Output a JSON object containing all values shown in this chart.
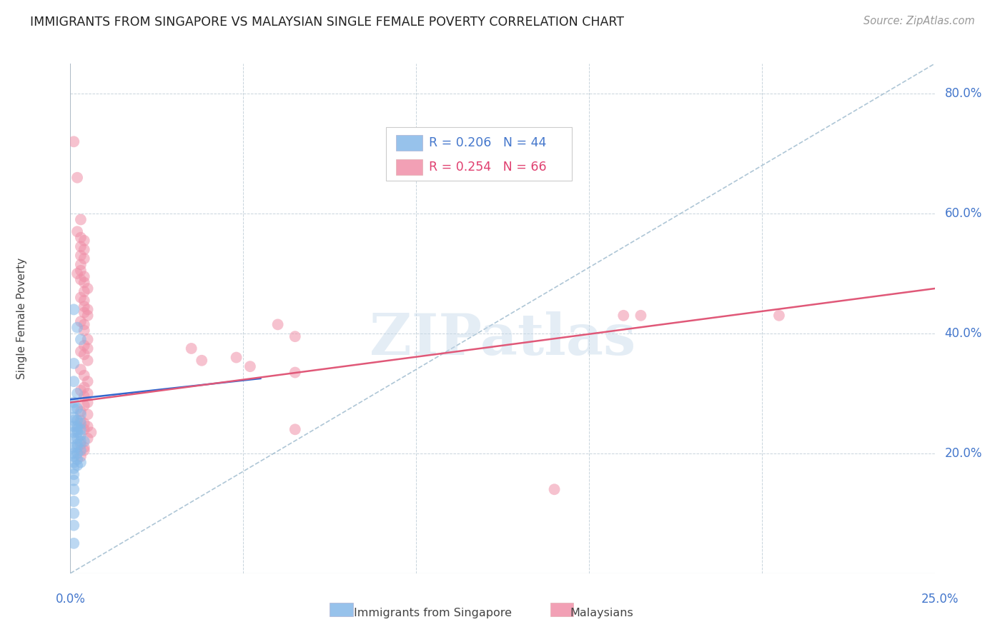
{
  "title": "IMMIGRANTS FROM SINGAPORE VS MALAYSIAN SINGLE FEMALE POVERTY CORRELATION CHART",
  "source": "Source: ZipAtlas.com",
  "ylabel": "Single Female Poverty",
  "legend_entries": [
    {
      "label": "R = 0.206   N = 44",
      "color": "#aac4e8"
    },
    {
      "label": "R = 0.254   N = 66",
      "color": "#f4a0b4"
    }
  ],
  "legend_labels_bottom": [
    "Immigrants from Singapore",
    "Malaysians"
  ],
  "xlim": [
    0.0,
    0.25
  ],
  "ylim": [
    0.0,
    0.85
  ],
  "blue_scatter": [
    [
      0.001,
      0.44
    ],
    [
      0.002,
      0.41
    ],
    [
      0.003,
      0.39
    ],
    [
      0.001,
      0.35
    ],
    [
      0.001,
      0.32
    ],
    [
      0.002,
      0.3
    ],
    [
      0.001,
      0.285
    ],
    [
      0.001,
      0.275
    ],
    [
      0.002,
      0.275
    ],
    [
      0.003,
      0.265
    ],
    [
      0.001,
      0.26
    ],
    [
      0.002,
      0.255
    ],
    [
      0.001,
      0.255
    ],
    [
      0.003,
      0.25
    ],
    [
      0.002,
      0.245
    ],
    [
      0.001,
      0.245
    ],
    [
      0.002,
      0.24
    ],
    [
      0.003,
      0.24
    ],
    [
      0.001,
      0.235
    ],
    [
      0.002,
      0.235
    ],
    [
      0.003,
      0.23
    ],
    [
      0.001,
      0.225
    ],
    [
      0.002,
      0.225
    ],
    [
      0.003,
      0.22
    ],
    [
      0.004,
      0.22
    ],
    [
      0.002,
      0.215
    ],
    [
      0.001,
      0.21
    ],
    [
      0.002,
      0.21
    ],
    [
      0.003,
      0.205
    ],
    [
      0.001,
      0.2
    ],
    [
      0.002,
      0.2
    ],
    [
      0.001,
      0.195
    ],
    [
      0.002,
      0.19
    ],
    [
      0.001,
      0.185
    ],
    [
      0.003,
      0.185
    ],
    [
      0.002,
      0.18
    ],
    [
      0.001,
      0.175
    ],
    [
      0.001,
      0.165
    ],
    [
      0.001,
      0.155
    ],
    [
      0.001,
      0.14
    ],
    [
      0.001,
      0.12
    ],
    [
      0.001,
      0.1
    ],
    [
      0.001,
      0.08
    ],
    [
      0.001,
      0.05
    ]
  ],
  "pink_scatter": [
    [
      0.001,
      0.72
    ],
    [
      0.002,
      0.66
    ],
    [
      0.003,
      0.59
    ],
    [
      0.002,
      0.57
    ],
    [
      0.003,
      0.56
    ],
    [
      0.004,
      0.555
    ],
    [
      0.003,
      0.545
    ],
    [
      0.004,
      0.54
    ],
    [
      0.003,
      0.53
    ],
    [
      0.004,
      0.525
    ],
    [
      0.003,
      0.515
    ],
    [
      0.003,
      0.505
    ],
    [
      0.002,
      0.5
    ],
    [
      0.004,
      0.495
    ],
    [
      0.003,
      0.49
    ],
    [
      0.004,
      0.485
    ],
    [
      0.005,
      0.475
    ],
    [
      0.004,
      0.47
    ],
    [
      0.003,
      0.46
    ],
    [
      0.004,
      0.455
    ],
    [
      0.004,
      0.445
    ],
    [
      0.005,
      0.44
    ],
    [
      0.004,
      0.435
    ],
    [
      0.005,
      0.43
    ],
    [
      0.003,
      0.42
    ],
    [
      0.004,
      0.415
    ],
    [
      0.004,
      0.405
    ],
    [
      0.005,
      0.39
    ],
    [
      0.004,
      0.38
    ],
    [
      0.005,
      0.375
    ],
    [
      0.003,
      0.37
    ],
    [
      0.004,
      0.365
    ],
    [
      0.005,
      0.355
    ],
    [
      0.003,
      0.34
    ],
    [
      0.004,
      0.33
    ],
    [
      0.005,
      0.32
    ],
    [
      0.004,
      0.31
    ],
    [
      0.003,
      0.305
    ],
    [
      0.005,
      0.3
    ],
    [
      0.004,
      0.295
    ],
    [
      0.005,
      0.285
    ],
    [
      0.004,
      0.28
    ],
    [
      0.003,
      0.27
    ],
    [
      0.005,
      0.265
    ],
    [
      0.003,
      0.255
    ],
    [
      0.004,
      0.25
    ],
    [
      0.005,
      0.245
    ],
    [
      0.004,
      0.24
    ],
    [
      0.006,
      0.235
    ],
    [
      0.005,
      0.225
    ],
    [
      0.003,
      0.215
    ],
    [
      0.004,
      0.21
    ],
    [
      0.004,
      0.205
    ],
    [
      0.003,
      0.195
    ],
    [
      0.035,
      0.375
    ],
    [
      0.038,
      0.355
    ],
    [
      0.048,
      0.36
    ],
    [
      0.052,
      0.345
    ],
    [
      0.06,
      0.415
    ],
    [
      0.065,
      0.395
    ],
    [
      0.065,
      0.335
    ],
    [
      0.065,
      0.24
    ],
    [
      0.16,
      0.43
    ],
    [
      0.165,
      0.43
    ],
    [
      0.205,
      0.43
    ],
    [
      0.14,
      0.14
    ]
  ],
  "blue_line_x": [
    0.0,
    0.055
  ],
  "blue_line_y": [
    0.29,
    0.325
  ],
  "pink_line_x": [
    0.0,
    0.25
  ],
  "pink_line_y": [
    0.285,
    0.475
  ],
  "diag_line_x": [
    0.0,
    0.25
  ],
  "diag_line_y": [
    0.0,
    0.85
  ],
  "blue_scatter_color": "#85b8e8",
  "pink_scatter_color": "#f090a8",
  "blue_line_color": "#3366cc",
  "pink_line_color": "#e05878",
  "diag_line_color": "#9ab8cc",
  "watermark": "ZIPatlas",
  "background_color": "#ffffff",
  "grid_color": "#c8d4dc"
}
